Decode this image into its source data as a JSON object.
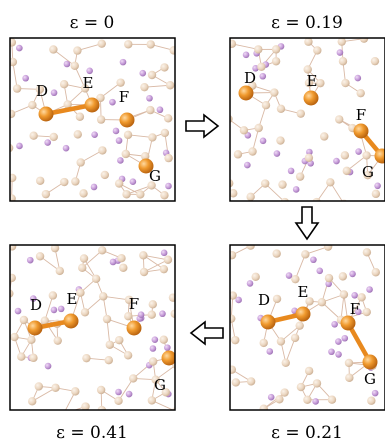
{
  "panels": [
    {
      "id": "p1",
      "strain_label": "ε = 0",
      "atoms": {
        "D": "D",
        "E": "E",
        "F": "F",
        "G": "G"
      },
      "bonds_highlighted": [
        "D-E"
      ]
    },
    {
      "id": "p2",
      "strain_label": "ε = 0.19",
      "atoms": {
        "D": "D",
        "E": "E",
        "F": "F",
        "G": "G"
      },
      "bonds_highlighted": [
        "F-G"
      ]
    },
    {
      "id": "p3",
      "strain_label": "ε = 0.21",
      "atoms": {
        "D": "D",
        "E": "E",
        "F": "F",
        "G": "G"
      },
      "bonds_highlighted": [
        "D-E",
        "F-G"
      ]
    },
    {
      "id": "p4",
      "strain_label": "ε = 0.41",
      "atoms": {
        "D": "D",
        "E": "E",
        "F": "F",
        "G": "G"
      },
      "bonds_highlighted": [
        "D-E"
      ]
    }
  ],
  "colors": {
    "highlight_atom": "#e8891e",
    "host_atom": "#ead5bf",
    "guest_atom": "#c79ad6",
    "bond": "#d9b9a5",
    "frame": "#000000"
  },
  "arrows": [
    "right",
    "down",
    "left"
  ]
}
